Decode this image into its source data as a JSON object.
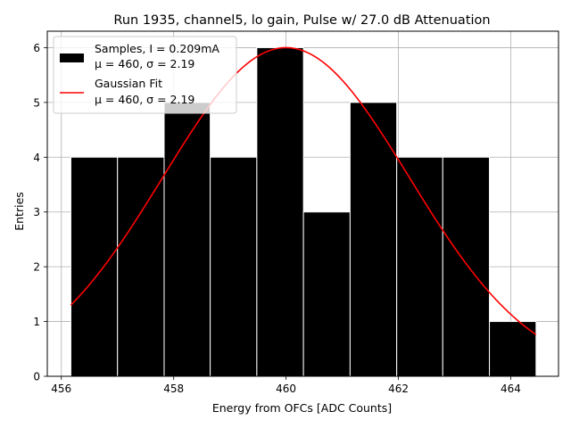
{
  "chart_data": {
    "type": "bar",
    "title": "Run 1935, channel5, lo gain, Pulse w/ 27.0 dB Attenuation",
    "xlabel": "Energy from OFCs [ADC Counts]",
    "ylabel": "Entries",
    "xlim": [
      455.75,
      464.85
    ],
    "ylim": [
      0,
      6.3
    ],
    "xticks": [
      "456",
      "458",
      "460",
      "462",
      "464"
    ],
    "yticks": [
      "0",
      "1",
      "2",
      "3",
      "4",
      "5",
      "6"
    ],
    "grid": true,
    "legend_position": "top-left",
    "histogram": {
      "name": "Samples, I = 0.209mA",
      "stats": "μ = 460, σ = 2.19",
      "color": "#000000",
      "bin_edges": [
        456.17,
        457.0,
        457.83,
        458.65,
        459.48,
        460.31,
        461.14,
        461.97,
        462.79,
        463.62,
        464.45
      ],
      "counts": [
        4,
        4,
        5,
        4,
        6,
        3,
        5,
        4,
        4,
        1
      ]
    },
    "fit": {
      "name": "Gaussian Fit",
      "stats": "μ = 460, σ = 2.19",
      "color": "#ff0000",
      "mu": 460,
      "sigma": 2.19,
      "amplitude": 6.0,
      "x_range": [
        456.17,
        464.45
      ]
    }
  }
}
